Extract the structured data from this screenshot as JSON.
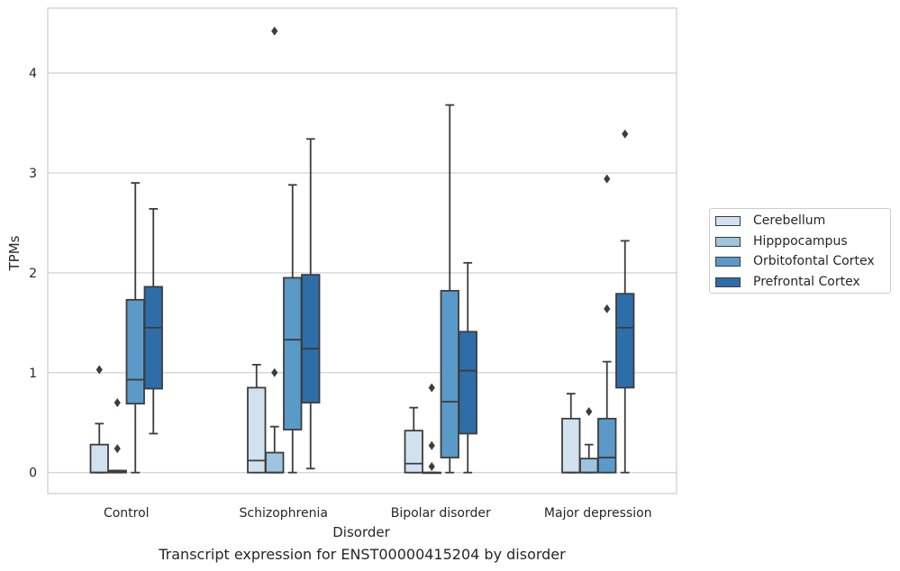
{
  "chart_data": {
    "type": "box",
    "xlabel": "Disorder",
    "ylabel": "TPMs",
    "caption": "Transcript expression for ENST00000415204 by disorder",
    "categories": [
      "Control",
      "Schizophrenia",
      "Bipolar disorder",
      "Major depression"
    ],
    "ylim": [
      -0.21,
      4.65
    ],
    "yticks": [
      0,
      1,
      2,
      3,
      4
    ],
    "grid": true,
    "legend_position": "right",
    "series": [
      {
        "name": "Cerebellum",
        "color": "#d1e1f0",
        "boxes": [
          {
            "whisker_low": 0,
            "q1": 0,
            "median": 0,
            "q3": 0.28,
            "whisker_high": 0.49,
            "outliers": [
              1.03
            ]
          },
          {
            "whisker_low": 0,
            "q1": 0,
            "median": 0.12,
            "q3": 0.85,
            "whisker_high": 1.08,
            "outliers": []
          },
          {
            "whisker_low": 0,
            "q1": 0,
            "median": 0.09,
            "q3": 0.42,
            "whisker_high": 0.65,
            "outliers": []
          },
          {
            "whisker_low": 0,
            "q1": 0,
            "median": 0,
            "q3": 0.54,
            "whisker_high": 0.79,
            "outliers": []
          }
        ]
      },
      {
        "name": "Hipppocampus",
        "color": "#9fc4df",
        "boxes": [
          {
            "whisker_low": 0,
            "q1": 0,
            "median": 0.01,
            "q3": 0.02,
            "whisker_high": 0.02,
            "outliers": [
              0.24,
              0.7
            ]
          },
          {
            "whisker_low": 0,
            "q1": 0,
            "median": 0,
            "q3": 0.2,
            "whisker_high": 0.46,
            "outliers": [
              1.0,
              4.42
            ]
          },
          {
            "whisker_low": 0,
            "q1": 0,
            "median": 0,
            "q3": 0,
            "whisker_high": 0,
            "outliers": [
              0.06,
              0.27,
              0.85
            ]
          },
          {
            "whisker_low": 0,
            "q1": 0,
            "median": 0,
            "q3": 0.14,
            "whisker_high": 0.28,
            "outliers": [
              0.61
            ]
          }
        ]
      },
      {
        "name": "Orbitofontal Cortex",
        "color": "#5a9ac8",
        "boxes": [
          {
            "whisker_low": 0,
            "q1": 0.69,
            "median": 0.93,
            "q3": 1.73,
            "whisker_high": 2.9,
            "outliers": []
          },
          {
            "whisker_low": 0,
            "q1": 0.43,
            "median": 1.33,
            "q3": 1.95,
            "whisker_high": 2.88,
            "outliers": []
          },
          {
            "whisker_low": 0,
            "q1": 0.15,
            "median": 0.71,
            "q3": 1.82,
            "whisker_high": 3.68,
            "outliers": []
          },
          {
            "whisker_low": 0,
            "q1": 0,
            "median": 0.15,
            "q3": 0.54,
            "whisker_high": 1.11,
            "outliers": [
              1.64,
              2.94
            ]
          }
        ]
      },
      {
        "name": "Prefrontal Cortex",
        "color": "#2d6ea9",
        "boxes": [
          {
            "whisker_low": 0.39,
            "q1": 0.84,
            "median": 1.45,
            "q3": 1.86,
            "whisker_high": 2.64,
            "outliers": []
          },
          {
            "whisker_low": 0.04,
            "q1": 0.7,
            "median": 1.24,
            "q3": 1.98,
            "whisker_high": 3.34,
            "outliers": []
          },
          {
            "whisker_low": 0,
            "q1": 0.39,
            "median": 1.02,
            "q3": 1.41,
            "whisker_high": 2.1,
            "outliers": []
          },
          {
            "whisker_low": 0,
            "q1": 0.85,
            "median": 1.45,
            "q3": 1.79,
            "whisker_high": 2.32,
            "outliers": [
              3.39
            ]
          }
        ]
      }
    ]
  }
}
